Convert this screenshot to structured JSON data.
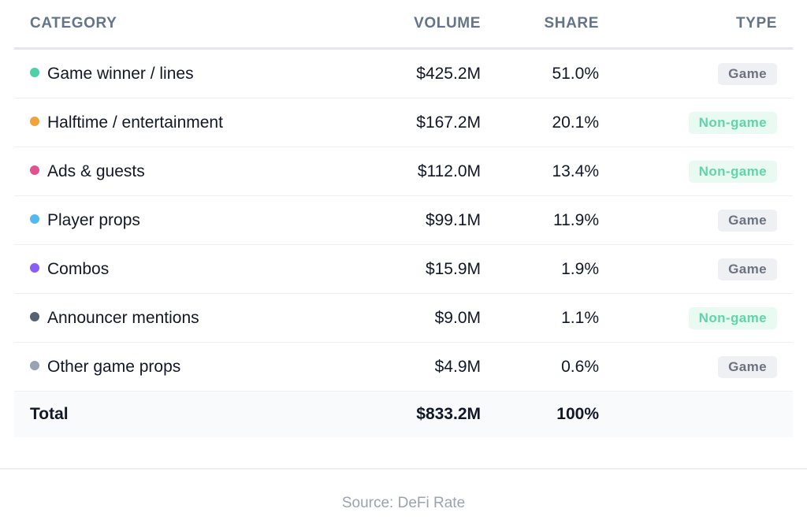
{
  "chart_data": {
    "type": "table",
    "columns": [
      "CATEGORY",
      "VOLUME",
      "SHARE",
      "TYPE"
    ],
    "rows": [
      {
        "category": "Game winner / lines",
        "volume": "$425.2M",
        "share": "51.0%",
        "type": "Game",
        "dot_color": "#4fd1a5"
      },
      {
        "category": "Halftime / entertainment",
        "volume": "$167.2M",
        "share": "20.1%",
        "type": "Non-game",
        "dot_color": "#f0a23b"
      },
      {
        "category": "Ads & guests",
        "volume": "$112.0M",
        "share": "13.4%",
        "type": "Non-game",
        "dot_color": "#e0538f"
      },
      {
        "category": "Player props",
        "volume": "$99.1M",
        "share": "11.9%",
        "type": "Game",
        "dot_color": "#56b8f0"
      },
      {
        "category": "Combos",
        "volume": "$15.9M",
        "share": "1.9%",
        "type": "Game",
        "dot_color": "#8b5cf6"
      },
      {
        "category": "Announcer mentions",
        "volume": "$9.0M",
        "share": "1.1%",
        "type": "Non-game",
        "dot_color": "#566074"
      },
      {
        "category": "Other game props",
        "volume": "$4.9M",
        "share": "0.6%",
        "type": "Game",
        "dot_color": "#9aa3b2"
      }
    ],
    "total": {
      "label": "Total",
      "volume": "$833.2M",
      "share": "100%"
    }
  },
  "source": "Source: DeFi Rate"
}
